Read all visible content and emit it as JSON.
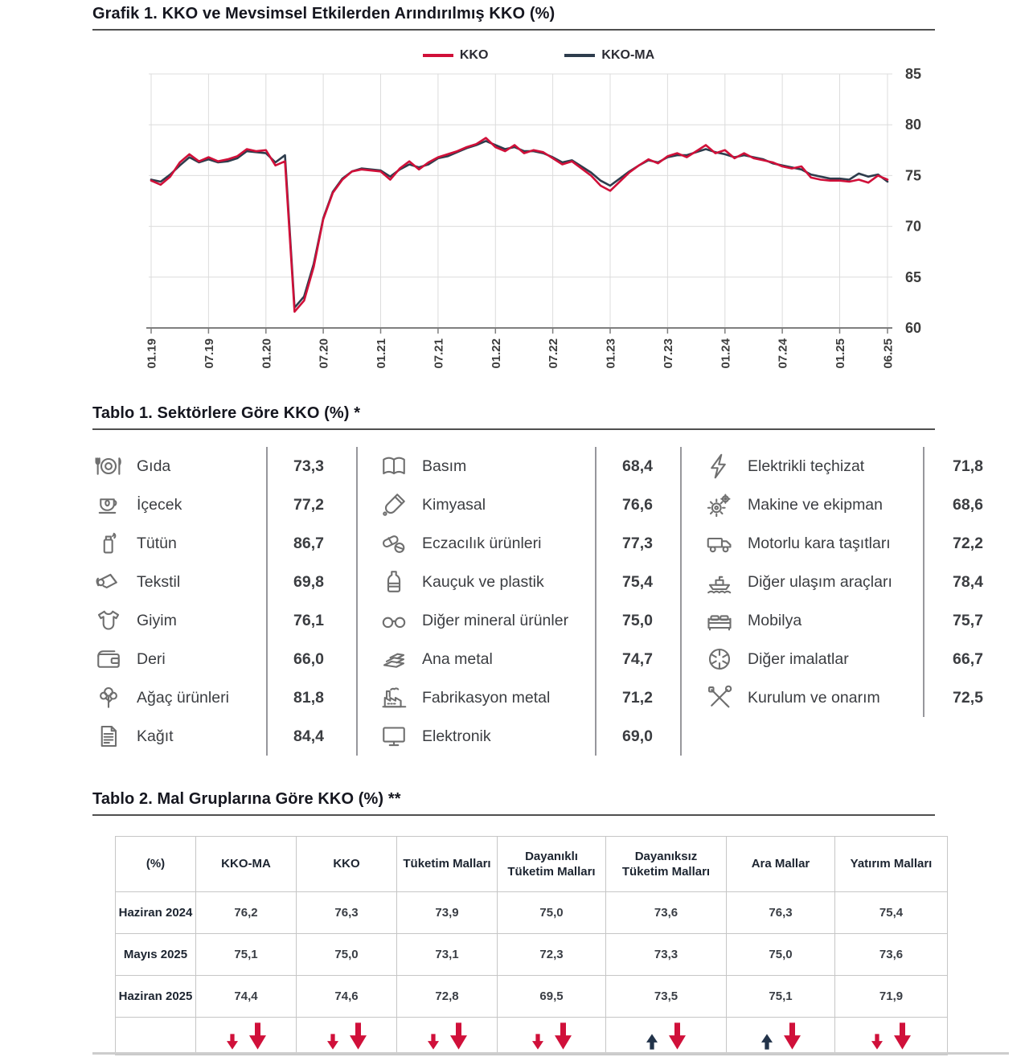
{
  "grafik1": {
    "title": "Grafik 1. KKO ve Mevsimsel Etkilerden Arındırılmış KKO (%)",
    "legend": [
      {
        "label": "KKO",
        "color": "#d01039"
      },
      {
        "label": "KKO-MA",
        "color": "#2e3d4d"
      }
    ],
    "chart_data": {
      "type": "line",
      "title": "Grafik 1. KKO ve Mevsimsel Etkilerden Arındırılmış KKO (%)",
      "xlabel": "",
      "ylabel": "",
      "ylim": [
        60,
        85
      ],
      "yticks": [
        60,
        65,
        70,
        75,
        80,
        85
      ],
      "grid": true,
      "legend_position": "top",
      "x_tick_labels": [
        "01.19",
        "07.19",
        "01.20",
        "07.20",
        "01.21",
        "07.21",
        "01.22",
        "07.22",
        "01.23",
        "07.23",
        "01.24",
        "07.24",
        "01.25",
        "06.25"
      ],
      "x_tick_month_index": [
        0,
        6,
        12,
        18,
        24,
        30,
        36,
        42,
        48,
        54,
        60,
        66,
        72,
        77
      ],
      "series": [
        {
          "name": "KKO",
          "color": "#d01039",
          "values": [
            74.5,
            74.1,
            74.9,
            76.3,
            77.1,
            76.4,
            76.8,
            76.4,
            76.6,
            76.9,
            77.6,
            77.4,
            77.5,
            76.0,
            76.4,
            61.6,
            62.7,
            66.0,
            70.7,
            73.3,
            74.6,
            75.4,
            75.6,
            75.5,
            75.4,
            74.6,
            75.7,
            76.4,
            75.6,
            76.3,
            76.8,
            77.1,
            77.4,
            77.8,
            78.1,
            78.7,
            77.8,
            77.4,
            78.0,
            77.2,
            77.5,
            77.3,
            76.7,
            76.1,
            76.4,
            75.7,
            75.0,
            74.0,
            73.5,
            74.4,
            75.3,
            76.0,
            76.6,
            76.2,
            76.9,
            77.2,
            76.8,
            77.4,
            78.0,
            77.2,
            77.5,
            76.7,
            77.2,
            76.7,
            76.5,
            76.3,
            75.9,
            75.7,
            75.9,
            74.8,
            74.6,
            74.5,
            74.5,
            74.4,
            74.6,
            74.3,
            75.0,
            74.6
          ]
        },
        {
          "name": "KKO-MA",
          "color": "#2e3d4d",
          "values": [
            74.6,
            74.4,
            75.1,
            76.0,
            76.8,
            76.3,
            76.6,
            76.3,
            76.4,
            76.7,
            77.4,
            77.3,
            77.2,
            76.3,
            77.0,
            62.0,
            63.1,
            66.3,
            70.8,
            73.4,
            74.7,
            75.4,
            75.7,
            75.6,
            75.5,
            74.9,
            75.6,
            76.1,
            75.8,
            76.1,
            76.7,
            76.9,
            77.3,
            77.7,
            78.0,
            78.4,
            78.0,
            77.6,
            77.8,
            77.4,
            77.4,
            77.2,
            76.8,
            76.3,
            76.5,
            75.9,
            75.3,
            74.5,
            74.0,
            74.7,
            75.4,
            76.0,
            76.5,
            76.3,
            76.8,
            77.0,
            77.0,
            77.3,
            77.6,
            77.3,
            77.1,
            76.8,
            77.0,
            76.8,
            76.6,
            76.2,
            76.0,
            75.8,
            75.6,
            75.1,
            74.9,
            74.7,
            74.7,
            74.6,
            75.2,
            74.9,
            75.1,
            74.4
          ]
        }
      ]
    }
  },
  "tablo1": {
    "title": "Tablo 1. Sektörlere Göre KKO (%) *",
    "columns": [
      [
        {
          "icon": "plate-cutlery-icon",
          "label": "Gıda",
          "value": "73,3"
        },
        {
          "icon": "teacup-icon",
          "label": "İçecek",
          "value": "77,2"
        },
        {
          "icon": "lighter-icon",
          "label": "Tütün",
          "value": "86,7"
        },
        {
          "icon": "fabric-roll-icon",
          "label": "Tekstil",
          "value": "69,8"
        },
        {
          "icon": "baby-onesie-icon",
          "label": "Giyim",
          "value": "76,1"
        },
        {
          "icon": "wallet-icon",
          "label": "Deri",
          "value": "66,0"
        },
        {
          "icon": "tree-icon",
          "label": "Ağaç ürünleri",
          "value": "81,8"
        },
        {
          "icon": "paper-sheet-icon",
          "label": "Kağıt",
          "value": "84,4"
        }
      ],
      [
        {
          "icon": "open-book-icon",
          "label": "Basım",
          "value": "68,4"
        },
        {
          "icon": "test-tube-icon",
          "label": "Kimyasal",
          "value": "76,6"
        },
        {
          "icon": "pills-icon",
          "label": "Eczacılık ürünleri",
          "value": "77,3"
        },
        {
          "icon": "plastic-bottle-icon",
          "label": "Kauçuk ve plastik",
          "value": "75,4"
        },
        {
          "icon": "eyeglasses-icon",
          "label": "Diğer mineral ürünler",
          "value": "75,0"
        },
        {
          "icon": "metal-sheets-icon",
          "label": "Ana metal",
          "value": "74,7"
        },
        {
          "icon": "factory-icon",
          "label": "Fabrikasyon metal",
          "value": "71,2"
        },
        {
          "icon": "monitor-icon",
          "label": "Elektronik",
          "value": "69,0"
        }
      ],
      [
        {
          "icon": "lightning-bolt-icon",
          "label": "Elektrikli teçhizat",
          "value": "71,8"
        },
        {
          "icon": "gears-icon",
          "label": "Makine ve ekipman",
          "value": "68,6"
        },
        {
          "icon": "truck-icon",
          "label": "Motorlu kara taşıtları",
          "value": "72,2"
        },
        {
          "icon": "ship-icon",
          "label": "Diğer ulaşım araçları",
          "value": "78,4"
        },
        {
          "icon": "bed-icon",
          "label": "Mobilya",
          "value": "75,7"
        },
        {
          "icon": "aperture-icon",
          "label": "Diğer imalatlar",
          "value": "66,7"
        },
        {
          "icon": "tools-icon",
          "label": "Kurulum ve onarım",
          "value": "72,5"
        }
      ]
    ]
  },
  "tablo2": {
    "title": "Tablo 2. Mal Gruplarına Göre KKO (%) **",
    "headers": [
      "(%)",
      "KKO-MA",
      "KKO",
      "Tüketim Malları",
      "Dayanıklı\nTüketim Malları",
      "Dayanıksız\nTüketim Malları",
      "Ara Mallar",
      "Yatırım Malları"
    ],
    "rows": [
      {
        "label": "Haziran 2024",
        "values": [
          "76,2",
          "76,3",
          "73,9",
          "75,0",
          "73,6",
          "76,3",
          "75,4"
        ]
      },
      {
        "label": "Mayıs 2025",
        "values": [
          "75,1",
          "75,0",
          "73,1",
          "72,3",
          "73,3",
          "75,0",
          "73,6"
        ]
      },
      {
        "label": "Haziran 2025",
        "values": [
          "74,4",
          "74,6",
          "72,8",
          "69,5",
          "73,5",
          "75,1",
          "71,9"
        ]
      }
    ],
    "trend_arrows": [
      {
        "small": "down",
        "big": "down"
      },
      {
        "small": "down",
        "big": "down"
      },
      {
        "small": "down",
        "big": "down"
      },
      {
        "small": "down",
        "big": "down"
      },
      {
        "small": "up",
        "big": "down"
      },
      {
        "small": "up",
        "big": "down"
      },
      {
        "small": "down",
        "big": "down"
      }
    ],
    "arrow_colors": {
      "down": "#d0103a",
      "up": "#22334a"
    }
  }
}
